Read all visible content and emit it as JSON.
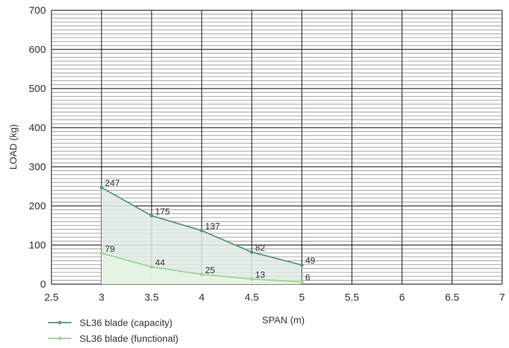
{
  "chart_data": {
    "type": "area",
    "title": "",
    "xlabel": "SPAN (m)",
    "ylabel": "LOAD (kg)",
    "xlim": [
      2.5,
      7
    ],
    "ylim": [
      0,
      700
    ],
    "x_ticks": [
      "2.5",
      "3",
      "3.5",
      "4",
      "4.5",
      "5",
      "5.5",
      "6",
      "6.5",
      "7"
    ],
    "y_ticks": [
      "0",
      "100",
      "200",
      "300",
      "400",
      "500",
      "600",
      "700"
    ],
    "grid": true,
    "legend_position": "bottom-left",
    "series": [
      {
        "name": "SL36 blade (capacity)",
        "color": "#5a9a78",
        "fill": "#dfeae4",
        "x": [
          3,
          3.5,
          4,
          4.5,
          5
        ],
        "values": [
          247,
          175,
          137,
          82,
          49
        ],
        "labels": [
          "247",
          "175",
          "137",
          "82",
          "49"
        ]
      },
      {
        "name": "SL36 blade (functional)",
        "color": "#9fd49a",
        "fill": "#e8f5e4",
        "x": [
          3,
          3.5,
          4,
          4.5,
          5
        ],
        "values": [
          79,
          44,
          25,
          13,
          6
        ],
        "labels": [
          "79",
          "44",
          "25",
          "13",
          "6"
        ]
      }
    ]
  }
}
